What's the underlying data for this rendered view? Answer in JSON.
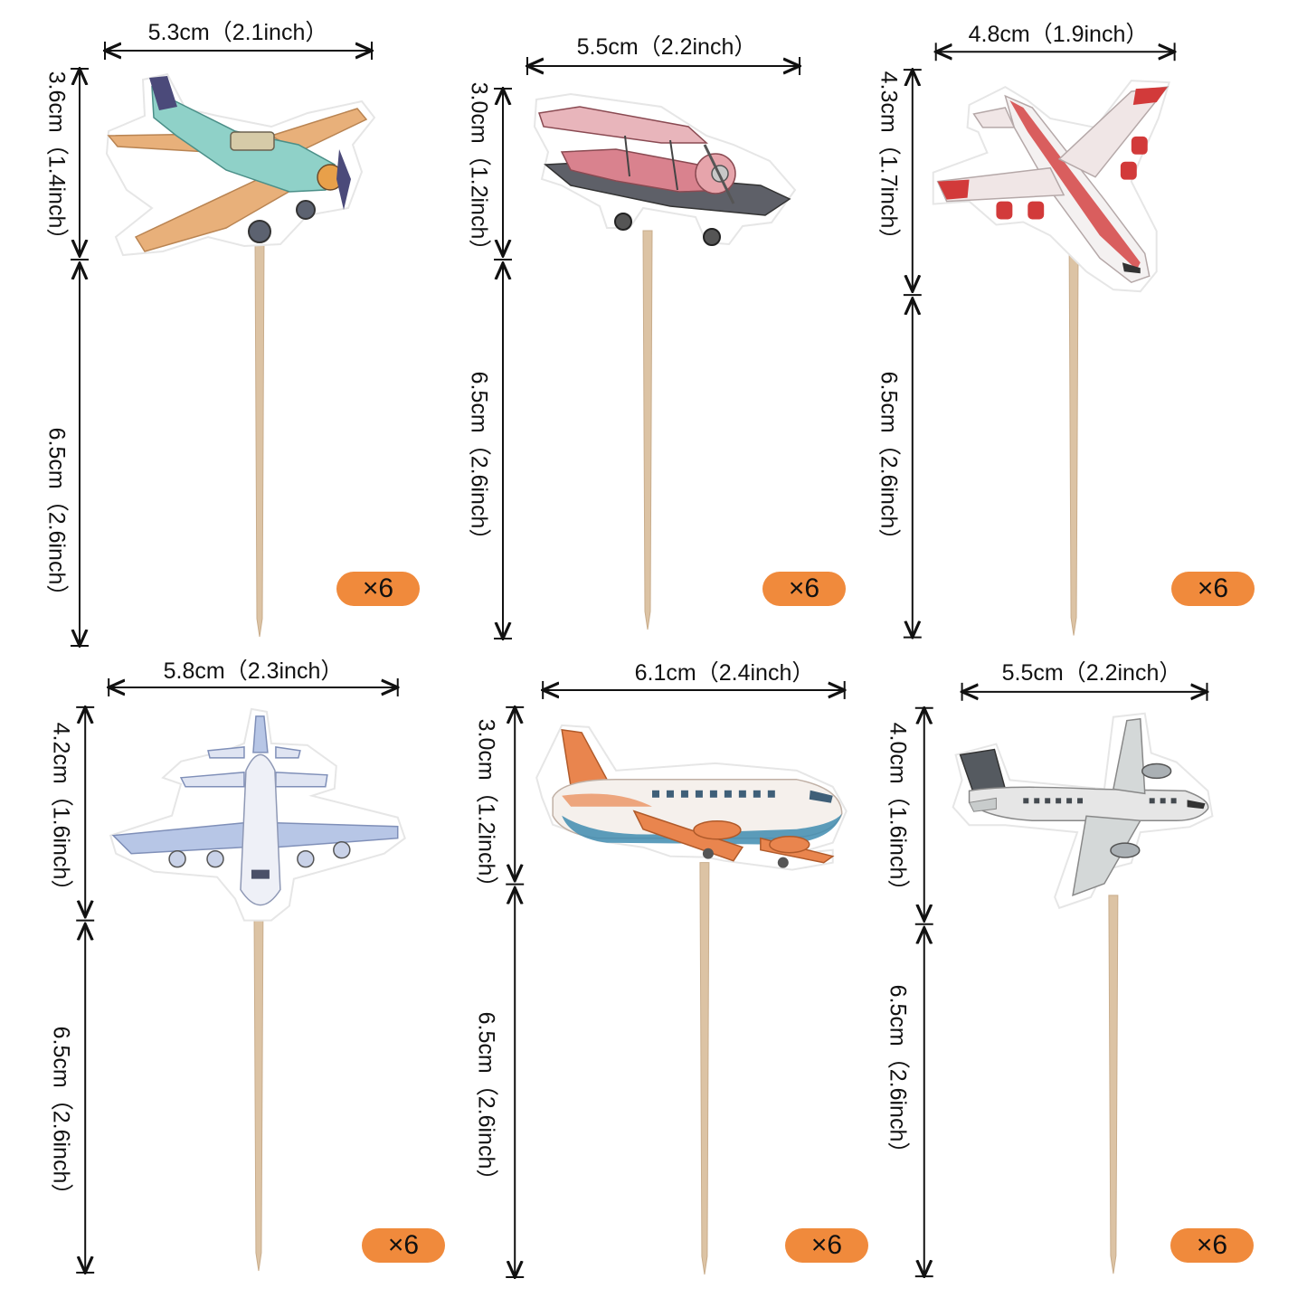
{
  "toppers": [
    {
      "name": "vintage-propeller-plane",
      "width_label": "5.3cm（2.1inch）",
      "top_height_label": "3.6cm（1.4inch）",
      "stick_length_label": "6.5cm（2.6inch）",
      "quantity": "×6",
      "colors": {
        "body": "#8fd1c8",
        "wing": "#e8b07a",
        "accent": "#4b4a7a"
      }
    },
    {
      "name": "biplane",
      "width_label": "5.5cm（2.2inch）",
      "top_height_label": "3.0cm（1.2inch）",
      "stick_length_label": "6.5cm（2.6inch）",
      "quantity": "×6",
      "colors": {
        "body": "#d9828e",
        "wing": "#e8b5bb",
        "accent": "#8a4a52"
      }
    },
    {
      "name": "red-white-jet",
      "width_label": "4.8cm（1.9inch）",
      "top_height_label": "4.3cm（1.7inch）",
      "stick_length_label": "6.5cm（2.6inch）",
      "quantity": "×6",
      "colors": {
        "body": "#f4f1f1",
        "wing": "#f0e6e6",
        "accent": "#d23a3a"
      }
    },
    {
      "name": "blue-four-engine-plane",
      "width_label": "5.8cm（2.3inch）",
      "top_height_label": "4.2cm（1.6inch）",
      "stick_length_label": "6.5cm（2.6inch）",
      "quantity": "×6",
      "colors": {
        "body": "#eef0f7",
        "wing": "#b7c6e6",
        "accent": "#7f8fb8"
      }
    },
    {
      "name": "orange-blue-airliner",
      "width_label": "6.1cm（2.4inch）",
      "top_height_label": "3.0cm（1.2inch）",
      "stick_length_label": "6.5cm（2.6inch）",
      "quantity": "×6",
      "colors": {
        "body": "#f5f0ec",
        "wing": "#e9854e",
        "accent": "#3f8cb0"
      }
    },
    {
      "name": "grey-airliner",
      "width_label": "5.5cm（2.2inch）",
      "top_height_label": "4.0cm（1.6inch）",
      "stick_length_label": "6.5cm（2.6inch）",
      "quantity": "×6",
      "colors": {
        "body": "#e6e6e6",
        "wing": "#d4d8d8",
        "accent": "#555a60"
      }
    }
  ]
}
